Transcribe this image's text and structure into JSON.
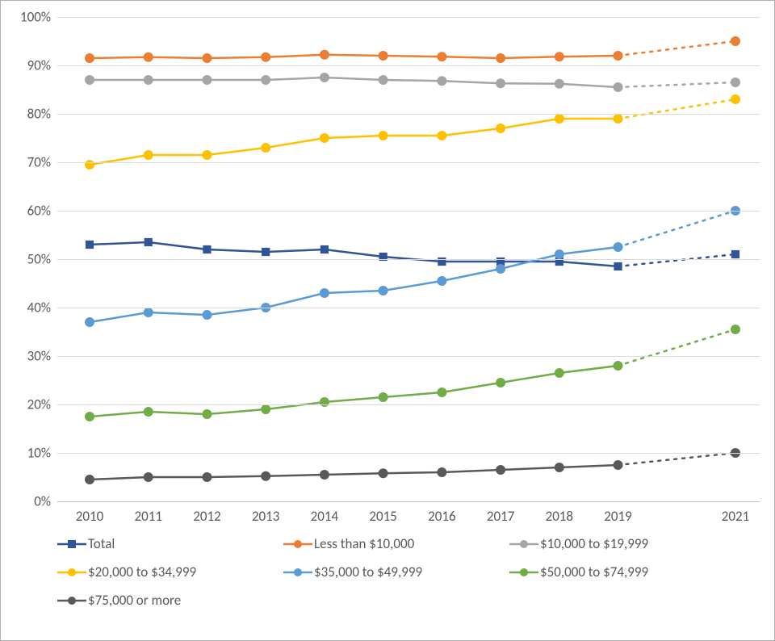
{
  "chart": {
    "type": "line",
    "background_color": "#ffffff",
    "border_color": "#b0b0b0",
    "font_family": "Calibri, Arial, sans-serif",
    "tick_fontsize": 17,
    "tick_color": "#595959",
    "grid_color": "#d9d9d9",
    "baseline_color": "#bfbfbf",
    "xaxis": {
      "categories": [
        "2010",
        "2011",
        "2012",
        "2013",
        "2014",
        "2015",
        "2016",
        "2017",
        "2018",
        "2019",
        "2021"
      ],
      "solid_end_index": 9,
      "gap_after_index": 9
    },
    "yaxis": {
      "min": 0,
      "max": 100,
      "tick_step": 10,
      "suffix": "%"
    },
    "line_width": 2.5,
    "marker_radius": 6,
    "series": [
      {
        "name": "Total",
        "label": "Total",
        "color": "#2f5597",
        "marker": "square",
        "values": [
          53,
          53.5,
          52,
          51.5,
          52,
          50.5,
          49.5,
          49.5,
          49.5,
          48.5,
          51
        ]
      },
      {
        "name": "lt10k",
        "label": "Less than $10,000",
        "color": "#ed7d31",
        "marker": "circle",
        "values": [
          91.5,
          91.7,
          91.5,
          91.7,
          92.2,
          92,
          91.8,
          91.5,
          91.8,
          92,
          95
        ]
      },
      {
        "name": "10to20",
        "label": "$10,000 to $19,999",
        "color": "#a5a5a5",
        "marker": "circle",
        "values": [
          87,
          87,
          87,
          87,
          87.5,
          87,
          86.8,
          86.3,
          86.2,
          85.5,
          86.5
        ]
      },
      {
        "name": "20to35",
        "label": "$20,000 to $34,999",
        "color": "#ffc000",
        "marker": "circle",
        "values": [
          69.5,
          71.5,
          71.5,
          73,
          75,
          75.5,
          75.5,
          77,
          79,
          79,
          83
        ]
      },
      {
        "name": "35to50",
        "label": "$35,000 to $49,999",
        "color": "#5b9bd5",
        "marker": "circle",
        "values": [
          37,
          39,
          38.5,
          40,
          43,
          43.5,
          45.5,
          48,
          51,
          52.5,
          60
        ]
      },
      {
        "name": "50to75",
        "label": "$50,000 to $74,999",
        "color": "#70ad47",
        "marker": "circle",
        "values": [
          17.5,
          18.5,
          18,
          19,
          20.5,
          21.5,
          22.5,
          24.5,
          26.5,
          28,
          35.5
        ]
      },
      {
        "name": "75plus",
        "label": "$75,000 or more",
        "color": "#595959",
        "marker": "circle",
        "values": [
          4.5,
          5,
          5,
          5.2,
          5.5,
          5.8,
          6,
          6.5,
          7,
          7.5,
          10
        ]
      }
    ],
    "legend_fontsize": 17
  }
}
